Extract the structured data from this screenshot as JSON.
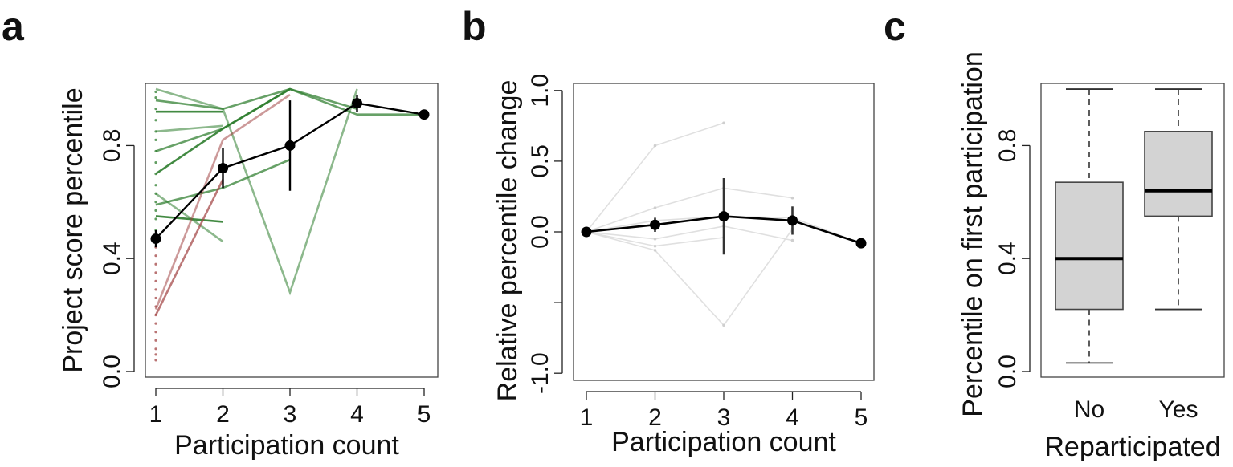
{
  "chart_data": [
    {
      "panel": "a",
      "type": "line",
      "xlabel": "Participation count",
      "ylabel": "Project score percentile",
      "xlim": [
        1,
        5
      ],
      "ylim": [
        -0.02,
        1.02
      ],
      "x_ticks": [
        1,
        2,
        3,
        4,
        5
      ],
      "y_ticks": [
        0.0,
        0.4,
        0.8
      ],
      "y_tick_labels": [
        "0.0",
        "0.4",
        "0.8"
      ],
      "colors": {
        "green": "#2e7d2e",
        "red": "#a34545",
        "mean": "#000000"
      },
      "single_points": {
        "green": [
          0.99,
          0.97,
          0.93,
          0.89,
          0.85,
          0.82,
          0.78,
          0.74,
          0.7,
          0.66,
          0.63,
          0.6,
          0.57,
          0.54,
          0.5,
          0.47
        ],
        "red": [
          0.44,
          0.41,
          0.38,
          0.35,
          0.32,
          0.29,
          0.26,
          0.23,
          0.2,
          0.17,
          0.14,
          0.11,
          0.08,
          0.06,
          0.04
        ]
      },
      "trajectories": [
        {
          "color": "green",
          "x": [
            1,
            2,
            3,
            4
          ],
          "y": [
            1.0,
            0.93,
            0.28,
            1.0
          ]
        },
        {
          "color": "green",
          "x": [
            1,
            2,
            3,
            4,
            5
          ],
          "y": [
            0.96,
            0.93,
            1.0,
            0.91,
            0.91
          ]
        },
        {
          "color": "green",
          "x": [
            1,
            2
          ],
          "y": [
            0.92,
            0.92
          ]
        },
        {
          "color": "green",
          "x": [
            1,
            2
          ],
          "y": [
            0.85,
            0.87
          ]
        },
        {
          "color": "green",
          "x": [
            1,
            2,
            3,
            4
          ],
          "y": [
            0.78,
            0.86,
            1.0,
            0.93
          ]
        },
        {
          "color": "green",
          "x": [
            1,
            2,
            3
          ],
          "y": [
            0.7,
            0.86,
            1.0
          ]
        },
        {
          "color": "green",
          "x": [
            1,
            2
          ],
          "y": [
            0.63,
            0.46
          ]
        },
        {
          "color": "green",
          "x": [
            1,
            2,
            3
          ],
          "y": [
            0.59,
            0.65,
            0.75
          ]
        },
        {
          "color": "green",
          "x": [
            1,
            2
          ],
          "y": [
            0.55,
            0.53
          ]
        },
        {
          "color": "red",
          "x": [
            1,
            2,
            3
          ],
          "y": [
            0.22,
            0.82,
            0.98
          ]
        },
        {
          "color": "red",
          "x": [
            1,
            2
          ],
          "y": [
            0.2,
            0.68
          ]
        }
      ],
      "mean": {
        "x": [
          1,
          2,
          3,
          4,
          5
        ],
        "y": [
          0.47,
          0.72,
          0.8,
          0.95,
          0.91
        ],
        "err": [
          0.03,
          0.07,
          0.16,
          0.03,
          0
        ]
      }
    },
    {
      "panel": "b",
      "type": "line",
      "xlabel": "Participation count",
      "ylabel": "Relative percentile change",
      "xlim": [
        1,
        5
      ],
      "ylim": [
        -1.05,
        1.05
      ],
      "x_ticks": [
        1,
        2,
        3,
        4,
        5
      ],
      "y_ticks": [
        1.0,
        0.5,
        0.0,
        -1.0
      ],
      "y_tick_labels": [
        "1.0",
        "0.5",
        "0.0",
        "-1.0"
      ],
      "extra_y_ticks": [
        -0.5
      ],
      "colors": {
        "faint": "#e0e0e0",
        "mean": "#000000"
      },
      "trajectories": [
        {
          "x": [
            1,
            2,
            3
          ],
          "y": [
            0.0,
            0.61,
            0.77
          ]
        },
        {
          "x": [
            1,
            2,
            3,
            4
          ],
          "y": [
            0.0,
            0.17,
            0.31,
            0.24
          ]
        },
        {
          "x": [
            1,
            2,
            3,
            4,
            5
          ],
          "y": [
            0.0,
            0.08,
            0.11,
            0.1,
            -0.08
          ]
        },
        {
          "x": [
            1,
            2,
            3,
            4
          ],
          "y": [
            0.0,
            -0.05,
            0.04,
            -0.06
          ]
        },
        {
          "x": [
            1,
            2,
            3,
            4
          ],
          "y": [
            0.0,
            -0.13,
            -0.66,
            0.02
          ]
        },
        {
          "x": [
            1,
            2,
            3
          ],
          "y": [
            0.0,
            -0.1,
            -0.04
          ]
        }
      ],
      "mean": {
        "x": [
          1,
          2,
          3,
          4,
          5
        ],
        "y": [
          0.0,
          0.05,
          0.11,
          0.08,
          -0.08
        ],
        "err": [
          0.0,
          0.05,
          0.27,
          0.1,
          0.0
        ]
      }
    },
    {
      "panel": "c",
      "type": "box",
      "xlabel": "Reparticipated",
      "ylabel": "Percentile on first participation",
      "ylim": [
        -0.02,
        1.02
      ],
      "y_ticks": [
        0.0,
        0.4,
        0.8
      ],
      "y_tick_labels": [
        "0.0",
        "0.4",
        "0.8"
      ],
      "colors": {
        "box_fill": "#d3d3d3",
        "box_stroke": "#444444"
      },
      "categories": [
        "No",
        "Yes"
      ],
      "boxes": [
        {
          "category": "No",
          "whisker_low": 0.03,
          "q1": 0.22,
          "median": 0.4,
          "q3": 0.67,
          "whisker_high": 1.0
        },
        {
          "category": "Yes",
          "whisker_low": 0.22,
          "q1": 0.55,
          "median": 0.64,
          "q3": 0.85,
          "whisker_high": 1.0
        }
      ]
    }
  ],
  "panels": {
    "a": {
      "letter": "a"
    },
    "b": {
      "letter": "b"
    },
    "c": {
      "letter": "c"
    }
  }
}
